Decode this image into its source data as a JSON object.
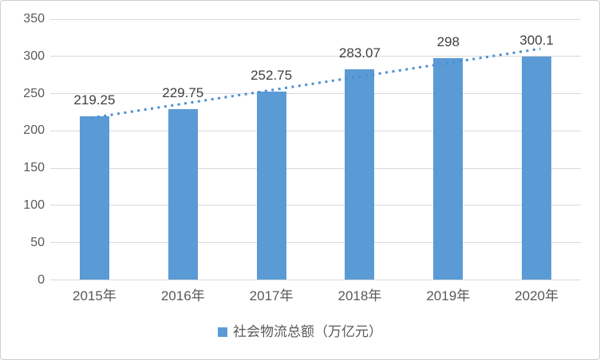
{
  "chart_data": {
    "type": "bar",
    "title": "",
    "categories": [
      "2015年",
      "2016年",
      "2017年",
      "2018年",
      "2019年",
      "2020年"
    ],
    "values": [
      219.25,
      229.75,
      252.75,
      283.07,
      298,
      300.1
    ],
    "data_labels": [
      "219.25",
      "229.75",
      "252.75",
      "283.07",
      "298",
      "300.1"
    ],
    "legend": "社会物流总额（万亿元）",
    "legend_position": "bottom-center",
    "xlabel": "",
    "ylabel": "",
    "y_ticks": [
      0,
      50,
      100,
      150,
      200,
      250,
      300,
      350
    ],
    "ylim": [
      0,
      350
    ],
    "grid": true,
    "trendline": {
      "type": "linear",
      "style": "dotted"
    },
    "colors": {
      "bar": "#5B9BD5",
      "trendline": "#4D8FD2",
      "gridline": "#D9D9D9",
      "axis_text": "#595959",
      "data_label_text": "#404040",
      "legend_text": "#595959",
      "border": "#CFCFCF",
      "background": "#FFFFFF"
    }
  }
}
